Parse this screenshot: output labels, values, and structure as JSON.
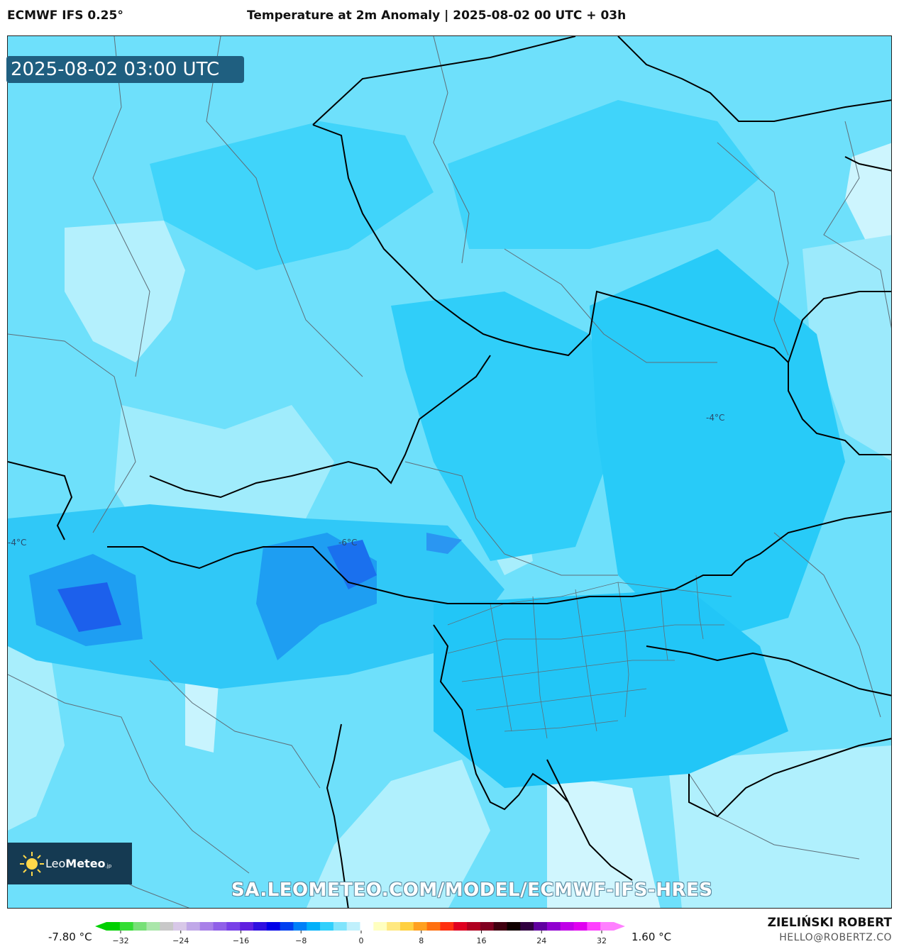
{
  "header": {
    "model": "ECMWF IFS 0.25°",
    "title": "Temperature at 2m Anomaly | 2025-08-02 00 UTC + 03h"
  },
  "map": {
    "valid_time": "2025-08-02 03:00 UTC",
    "contour_labels": [
      "-4°C",
      "-6°C",
      "-4°C"
    ],
    "watermark_url": "SA.LEOMETEO.COM/MODEL/ECMWF-IFS-HRES",
    "logo": {
      "name_light": "Leo",
      "name_bold": "Meteo",
      "suffix": ".jp"
    }
  },
  "colorbar": {
    "min_label": "-7.80 °C",
    "max_label": "1.60 °C",
    "ticks": [
      "−32",
      "−24",
      "−16",
      "−8",
      "0",
      "8",
      "16",
      "24",
      "32"
    ],
    "colors": [
      "#00d000",
      "#33dd33",
      "#77e077",
      "#aae6aa",
      "#c8c8c8",
      "#d8c8e8",
      "#c0a8e8",
      "#a880e8",
      "#9060e8",
      "#7840e8",
      "#6020e0",
      "#3010e0",
      "#0000e8",
      "#0040f0",
      "#0080f8",
      "#00b0fa",
      "#30d0fc",
      "#80e4fc",
      "#c0f0fc",
      "#ffffff",
      "#ffffc0",
      "#ffe880",
      "#ffd040",
      "#ffa020",
      "#ff7010",
      "#ff3010",
      "#e00020",
      "#b00020",
      "#800020",
      "#400010",
      "#100000",
      "#300040",
      "#6000a0",
      "#9000d0",
      "#c000e8",
      "#e000f0",
      "#ff40ff",
      "#ff80ff"
    ]
  },
  "credits": {
    "author": "ZIELIŃSKI ROBERT",
    "email": "HELLO@ROBERTZ.CO"
  }
}
